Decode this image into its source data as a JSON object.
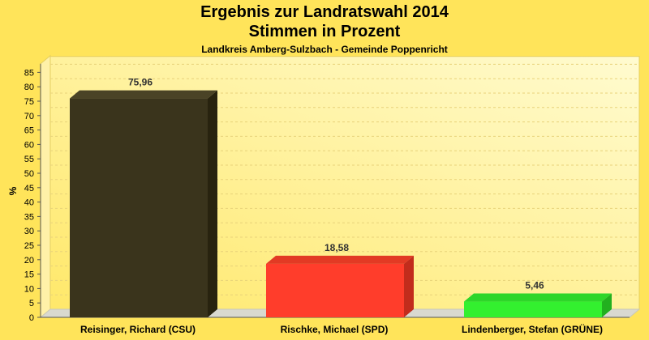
{
  "chart_data": {
    "type": "bar",
    "title": "Ergebnis zur Landratswahl 2014",
    "title_line2": "Stimmen in Prozent",
    "subtitle": "Landkreis Amberg-Sulzbach - Gemeinde Poppenricht",
    "xlabel": "",
    "ylabel": "%",
    "ylim": [
      0,
      88
    ],
    "yticks": [
      0,
      5,
      10,
      15,
      20,
      25,
      30,
      35,
      40,
      45,
      50,
      55,
      60,
      65,
      70,
      75,
      80,
      85
    ],
    "grid": true,
    "categories": [
      "Reisinger, Richard (CSU)",
      "Rischke, Michael (SPD)",
      "Lindenberger, Stefan (GRÜNE)"
    ],
    "values": [
      75.96,
      18.58,
      5.46
    ],
    "value_labels": [
      "75,96",
      "18,58",
      "5,46"
    ],
    "colors": [
      "#3A341C",
      "#FF3D2B",
      "#33F02F"
    ],
    "side_colors": [
      "#28230F",
      "#C22C1C",
      "#22B01F"
    ],
    "top_colors": [
      "#4A4326",
      "#E23A24",
      "#2ED62A"
    ],
    "background": "#FFE45A"
  }
}
